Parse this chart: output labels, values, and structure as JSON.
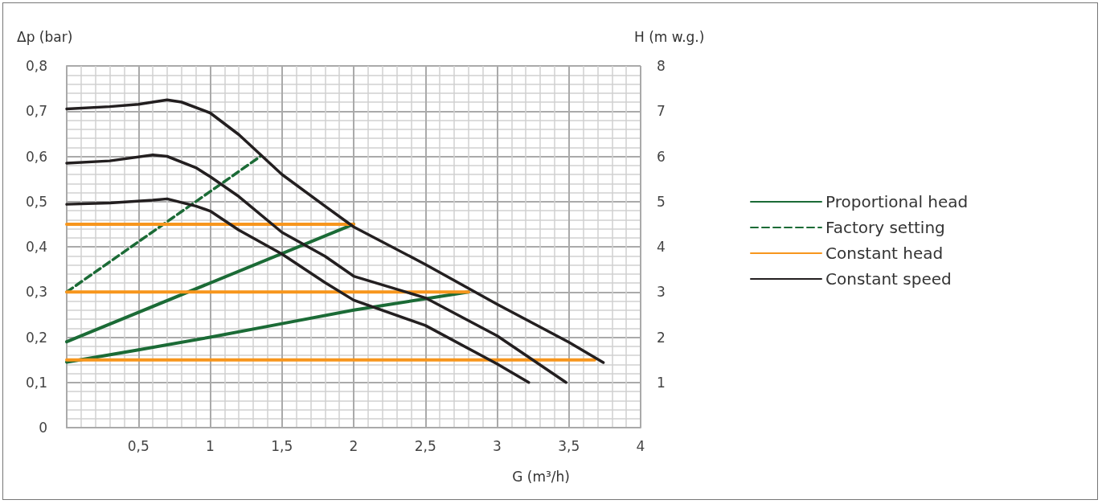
{
  "chart_data": {
    "type": "line",
    "xlabel": "G (m³/h)",
    "ylabel": "Δp (bar)",
    "y2label": "H (m w.g.)",
    "xlim": [
      0,
      4
    ],
    "xticks": [
      {
        "value": 0,
        "label": null
      },
      {
        "value": 0.5,
        "label": "0,5"
      },
      1,
      {
        "value": 1.5,
        "label": "1,5"
      },
      2,
      {
        "value": 2.5,
        "label": "2,5"
      },
      3,
      {
        "value": 3.5,
        "label": "3,5"
      },
      4
    ],
    "ylim": [
      0,
      0.8
    ],
    "yticks": [
      0,
      {
        "value": 0.1,
        "label": "0,1"
      },
      {
        "value": 0.2,
        "label": "0,2"
      },
      {
        "value": 0.3,
        "label": "0,3"
      },
      {
        "value": 0.4,
        "label": "0,4"
      },
      {
        "value": 0.5,
        "label": "0,5"
      },
      {
        "value": 0.6,
        "label": "0,6"
      },
      {
        "value": 0.7,
        "label": "0,7"
      },
      {
        "value": 0.8,
        "label": "0,8"
      }
    ],
    "y2lim": [
      0,
      8
    ],
    "y2ticks": [
      1,
      2,
      3,
      4,
      5,
      6,
      7,
      8
    ],
    "grid": true,
    "legend": "right",
    "marker": "none",
    "series": [
      {
        "name": "Proportional head",
        "color": "#1b6b36",
        "line_style": "solid",
        "x": [
          0,
          2
        ],
        "values": [
          0.19,
          0.45
        ]
      },
      {
        "color": "#1b6b36",
        "line_style": "solid",
        "x": [
          0,
          0.5,
          1,
          1.5,
          2,
          2.8
        ],
        "values": [
          0.145,
          0.172,
          0.2,
          0.23,
          0.26,
          0.3
        ]
      },
      {
        "name": "Factory setting",
        "color": "#1b6b36",
        "line_style": "dashed",
        "x": [
          0,
          1.35
        ],
        "values": [
          0.3,
          0.6
        ]
      },
      {
        "name": "Constant head",
        "color": "#f7961d",
        "line_style": "solid",
        "x": [
          0,
          2
        ],
        "values": [
          0.45,
          0.45
        ]
      },
      {
        "color": "#f7961d",
        "line_style": "solid",
        "x": [
          0,
          2.8
        ],
        "values": [
          0.3,
          0.3
        ]
      },
      {
        "color": "#f7961d",
        "line_style": "solid",
        "x": [
          0,
          3.68
        ],
        "values": [
          0.15,
          0.15
        ]
      },
      {
        "name": "Constant speed",
        "color": "#231f20",
        "line_style": "solid",
        "x": [
          0,
          0.3,
          0.5,
          0.7,
          0.8,
          1,
          1.2,
          1.5,
          1.8,
          2,
          2.5,
          3,
          3.5,
          3.74
        ],
        "values": [
          0.705,
          0.71,
          0.715,
          0.725,
          0.72,
          0.696,
          0.648,
          0.56,
          0.49,
          0.444,
          0.361,
          0.273,
          0.189,
          0.144
        ]
      },
      {
        "color": "#231f20",
        "line_style": "solid",
        "x": [
          0,
          0.3,
          0.6,
          0.7,
          0.9,
          1,
          1.2,
          1.5,
          1.8,
          2,
          2.5,
          3,
          3.48
        ],
        "values": [
          0.585,
          0.59,
          0.603,
          0.6,
          0.575,
          0.555,
          0.511,
          0.432,
          0.379,
          0.335,
          0.287,
          0.203,
          0.1
        ]
      },
      {
        "color": "#231f20",
        "line_style": "solid",
        "x": [
          0,
          0.3,
          0.6,
          0.7,
          0.9,
          1,
          1.2,
          1.5,
          1.8,
          2,
          2.5,
          3,
          3.22
        ],
        "values": [
          0.494,
          0.497,
          0.503,
          0.506,
          0.49,
          0.479,
          0.437,
          0.384,
          0.321,
          0.282,
          0.226,
          0.141,
          0.1
        ]
      }
    ]
  }
}
